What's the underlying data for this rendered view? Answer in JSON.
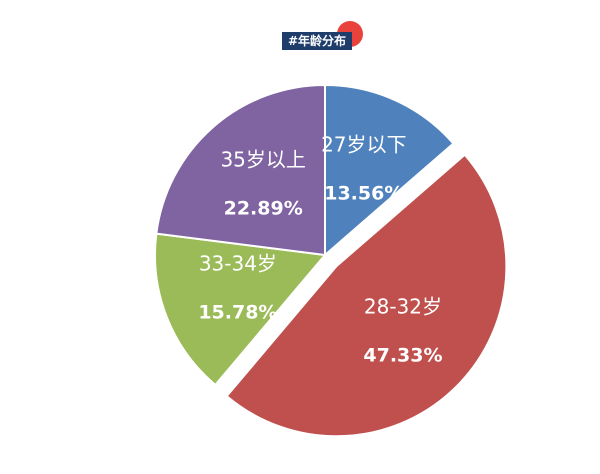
{
  "chart_data": {
    "type": "pie",
    "title": "#年龄分布",
    "categories": [
      "27岁以下",
      "28-32岁",
      "33-34岁",
      "35岁以上"
    ],
    "values": [
      13.56,
      47.33,
      15.78,
      22.89
    ],
    "value_labels": [
      "13.56%",
      "47.33%",
      "15.78%",
      "22.89%"
    ],
    "colors": [
      "#4f81bd",
      "#c0504d",
      "#9bbb59",
      "#8064a2"
    ],
    "explode": [
      false,
      true,
      false,
      false
    ]
  }
}
